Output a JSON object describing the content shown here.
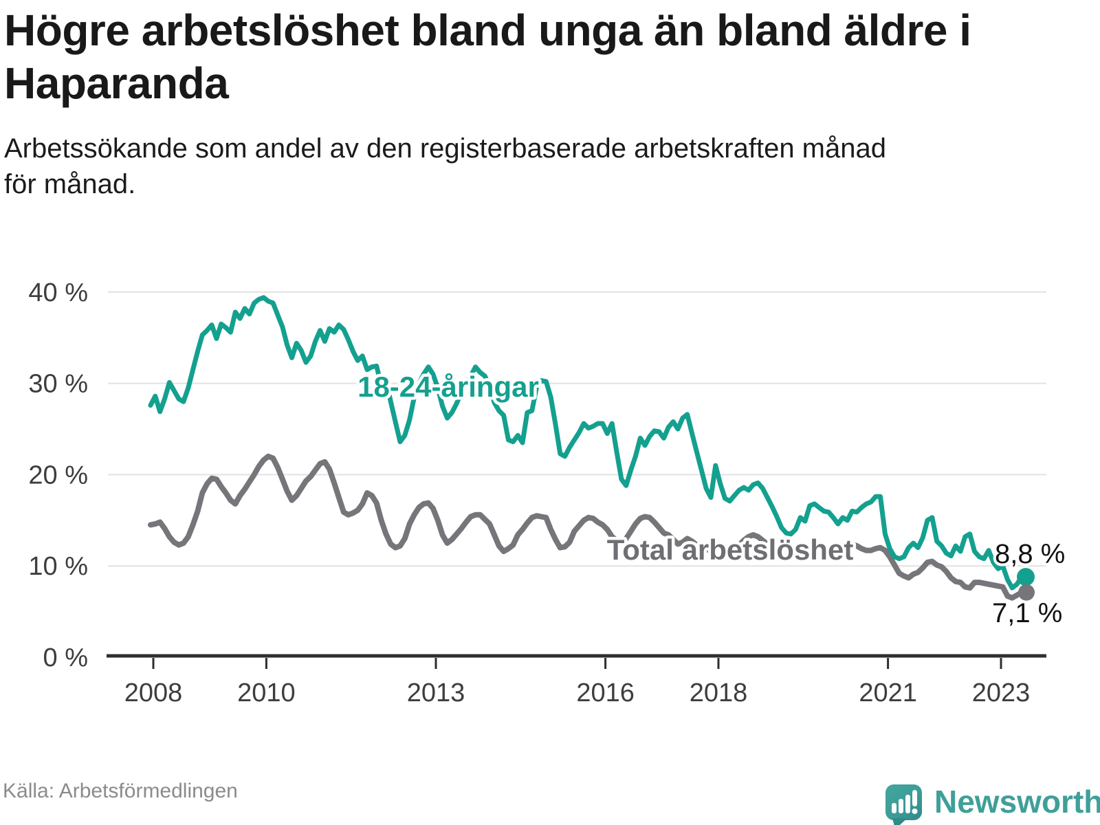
{
  "header": {
    "title": "Högre arbetslöshet bland unga än bland äldre i\nHaparanda",
    "subtitle": "Arbetssökande som andel av den registerbaserade arbetskraften månad\nför månad."
  },
  "footer": {
    "source": "Källa: Arbetsförmedlingen",
    "brand": "Newsworthy"
  },
  "colors": {
    "youth_line": "#14a08f",
    "total_line": "#75757a",
    "title_text": "#191919",
    "axis_text": "#3d3d3d",
    "end_label_text": "#111111",
    "gridline": "#e2e2e2",
    "axis_line": "#2e2e2e",
    "source_text": "#8b8b8b",
    "brand_teal": "#3f9f99"
  },
  "chart_data": {
    "type": "line",
    "title": "Högre arbetslöshet bland unga än bland äldre i Haparanda",
    "subtitle": "Arbetssökande som andel av den registerbaserade arbetskraften månad för månad.",
    "unit": "%",
    "frequency": "monthly",
    "x_start": "2008-01",
    "x_end": "2023-06",
    "ylim": [
      0,
      40
    ],
    "grid": "horizontal",
    "legend": "inline-labels",
    "y_ticks": [
      {
        "value": 0,
        "label": "0 %"
      },
      {
        "value": 10,
        "label": "10 %"
      },
      {
        "value": 20,
        "label": "20 %"
      },
      {
        "value": 30,
        "label": "30 %"
      },
      {
        "value": 40,
        "label": "40 %"
      }
    ],
    "x_ticks": [
      {
        "year": 2008,
        "label": "2008"
      },
      {
        "year": 2010,
        "label": "2010"
      },
      {
        "year": 2013,
        "label": "2013"
      },
      {
        "year": 2016,
        "label": "2016"
      },
      {
        "year": 2018,
        "label": "2018"
      },
      {
        "year": 2021,
        "label": "2021"
      },
      {
        "year": 2023,
        "label": "2023"
      }
    ],
    "series": [
      {
        "name": "18-24-åringar",
        "color": "#14a08f",
        "end_label": "8,8 %",
        "end_value": 8.8,
        "values": [
          27.6,
          28.6,
          26.9,
          28.3,
          30.1,
          29.2,
          28.3,
          28.0,
          29.5,
          31.5,
          33.5,
          35.3,
          35.8,
          36.4,
          34.9,
          36.5,
          36.1,
          35.6,
          37.8,
          37.1,
          38.2,
          37.6,
          38.8,
          39.2,
          39.4,
          39.0,
          38.8,
          37.5,
          36.2,
          34.2,
          32.8,
          34.4,
          33.6,
          32.3,
          33.0,
          34.6,
          35.8,
          34.6,
          36.0,
          35.6,
          36.4,
          35.9,
          34.8,
          33.5,
          32.5,
          33.0,
          31.5,
          31.8,
          31.9,
          29.8,
          30.3,
          28.0,
          25.8,
          23.6,
          24.3,
          26.0,
          28.5,
          30.0,
          31.0,
          31.8,
          31.0,
          29.5,
          27.5,
          26.2,
          26.8,
          27.8,
          29.0,
          30.0,
          30.8,
          31.8,
          31.2,
          30.8,
          29.6,
          27.9,
          27.0,
          26.5,
          23.8,
          23.6,
          24.3,
          23.5,
          26.8,
          27.0,
          29.6,
          30.3,
          30.2,
          28.5,
          25.5,
          22.3,
          22.0,
          23.0,
          23.8,
          24.6,
          25.6,
          25.1,
          25.3,
          25.6,
          25.6,
          24.5,
          25.6,
          22.5,
          19.5,
          18.8,
          20.5,
          22.0,
          24.0,
          23.2,
          24.2,
          24.8,
          24.7,
          24.0,
          25.2,
          25.8,
          25.0,
          26.2,
          26.6,
          24.5,
          22.5,
          20.5,
          18.5,
          17.5,
          21.0,
          19.0,
          17.4,
          17.1,
          17.7,
          18.3,
          18.6,
          18.3,
          18.9,
          19.1,
          18.5,
          17.5,
          16.5,
          15.4,
          14.2,
          13.6,
          13.5,
          14.0,
          15.3,
          14.9,
          16.6,
          16.8,
          16.4,
          16.0,
          15.9,
          15.3,
          14.6,
          15.3,
          15.0,
          16.0,
          15.9,
          16.4,
          16.8,
          17.0,
          17.6,
          17.6,
          13.5,
          11.9,
          11.0,
          10.8,
          11.0,
          12.0,
          12.5,
          12.0,
          13.1,
          15.0,
          15.3,
          12.7,
          12.2,
          11.4,
          11.1,
          12.2,
          11.6,
          13.2,
          13.5,
          11.6,
          11.0,
          10.8,
          11.7,
          10.4,
          9.7,
          10.0,
          8.5,
          7.6,
          8.0,
          8.8
        ]
      },
      {
        "name": "Total arbetslöshet",
        "color": "#75757a",
        "end_label": "7,1 %",
        "end_value": 7.1,
        "values": [
          14.5,
          14.6,
          14.8,
          14.1,
          13.2,
          12.6,
          12.3,
          12.5,
          13.2,
          14.5,
          16.0,
          18.0,
          19.0,
          19.6,
          19.5,
          18.7,
          18.0,
          17.2,
          16.8,
          17.7,
          18.4,
          19.2,
          20.0,
          20.9,
          21.6,
          22.0,
          21.8,
          20.8,
          19.5,
          18.2,
          17.2,
          17.7,
          18.5,
          19.3,
          19.8,
          20.5,
          21.2,
          21.4,
          20.6,
          19.1,
          17.5,
          15.9,
          15.6,
          15.8,
          16.1,
          16.8,
          18.0,
          17.7,
          16.9,
          15.0,
          13.5,
          12.4,
          12.0,
          12.2,
          13.0,
          14.6,
          15.6,
          16.4,
          16.8,
          16.9,
          16.3,
          15.0,
          13.4,
          12.5,
          12.9,
          13.5,
          14.1,
          14.8,
          15.4,
          15.6,
          15.6,
          15.1,
          14.6,
          13.4,
          12.2,
          11.6,
          11.9,
          12.3,
          13.4,
          14.0,
          14.7,
          15.3,
          15.5,
          15.4,
          15.3,
          14.0,
          12.9,
          12.0,
          12.1,
          12.6,
          13.8,
          14.4,
          15.0,
          15.3,
          15.2,
          14.8,
          14.5,
          14.0,
          13.2,
          12.8,
          12.6,
          13.0,
          13.8,
          14.6,
          15.2,
          15.4,
          15.3,
          14.8,
          14.2,
          13.6,
          13.4,
          12.9,
          12.4,
          12.6,
          13.0,
          12.7,
          12.3,
          12.0,
          11.8,
          11.7,
          12.6,
          12.2,
          11.8,
          11.6,
          11.9,
          12.3,
          12.8,
          13.2,
          13.4,
          13.2,
          12.8,
          12.4,
          12.0,
          11.5,
          11.0,
          10.8,
          11.0,
          11.3,
          11.6,
          11.4,
          11.8,
          11.9,
          11.7,
          11.5,
          11.3,
          11.0,
          11.2,
          11.8,
          12.2,
          12.4,
          12.2,
          11.9,
          11.7,
          11.7,
          11.9,
          12.0,
          11.7,
          11.0,
          10.1,
          9.2,
          8.9,
          8.7,
          9.1,
          9.3,
          9.8,
          10.4,
          10.5,
          10.1,
          9.9,
          9.4,
          8.7,
          8.3,
          8.2,
          7.7,
          7.6,
          8.2,
          8.2,
          8.1,
          8.0,
          7.9,
          7.8,
          7.7,
          6.7,
          6.5,
          6.8,
          7.1
        ]
      }
    ]
  }
}
